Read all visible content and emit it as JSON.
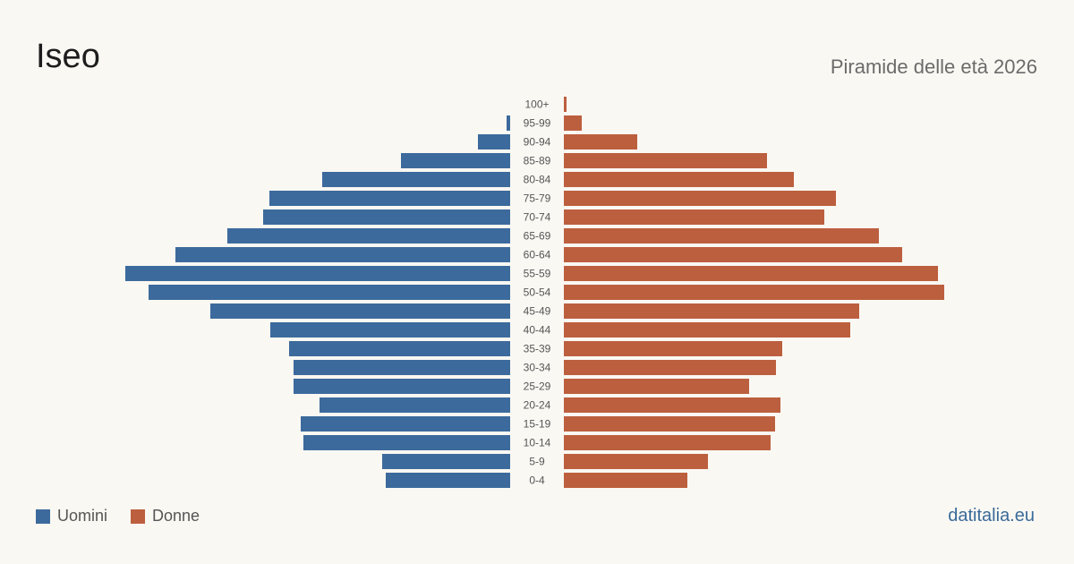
{
  "header": {
    "title": "Iseo",
    "subtitle": "Piramide delle età 2026"
  },
  "legend": {
    "men_label": "Uomini",
    "women_label": "Donne"
  },
  "footer": {
    "site": "datitalia.eu"
  },
  "colors": {
    "men": "#3c6a9c",
    "women": "#bc5f3e",
    "age_label": "#555555"
  },
  "chart_data": {
    "type": "bar",
    "orientation": "horizontal-pyramid",
    "title": "Piramide delle età 2026",
    "categories": [
      "100+",
      "95-99",
      "90-94",
      "85-89",
      "80-84",
      "75-79",
      "70-74",
      "65-69",
      "60-64",
      "55-59",
      "50-54",
      "45-49",
      "40-44",
      "35-39",
      "30-34",
      "25-29",
      "20-24",
      "15-19",
      "10-14",
      "5-9",
      "0-4"
    ],
    "series": [
      {
        "name": "Uomini",
        "values": [
          0,
          4,
          36,
          122,
          210,
          269,
          276,
          316,
          374,
          430,
          404,
          335,
          268,
          247,
          242,
          242,
          213,
          234,
          231,
          143,
          139
        ]
      },
      {
        "name": "Donne",
        "values": [
          3,
          20,
          82,
          227,
          257,
          304,
          291,
          352,
          378,
          418,
          425,
          330,
          320,
          244,
          237,
          207,
          242,
          236,
          231,
          161,
          138
        ]
      }
    ],
    "legend_position": "bottom-left",
    "grid": false
  }
}
